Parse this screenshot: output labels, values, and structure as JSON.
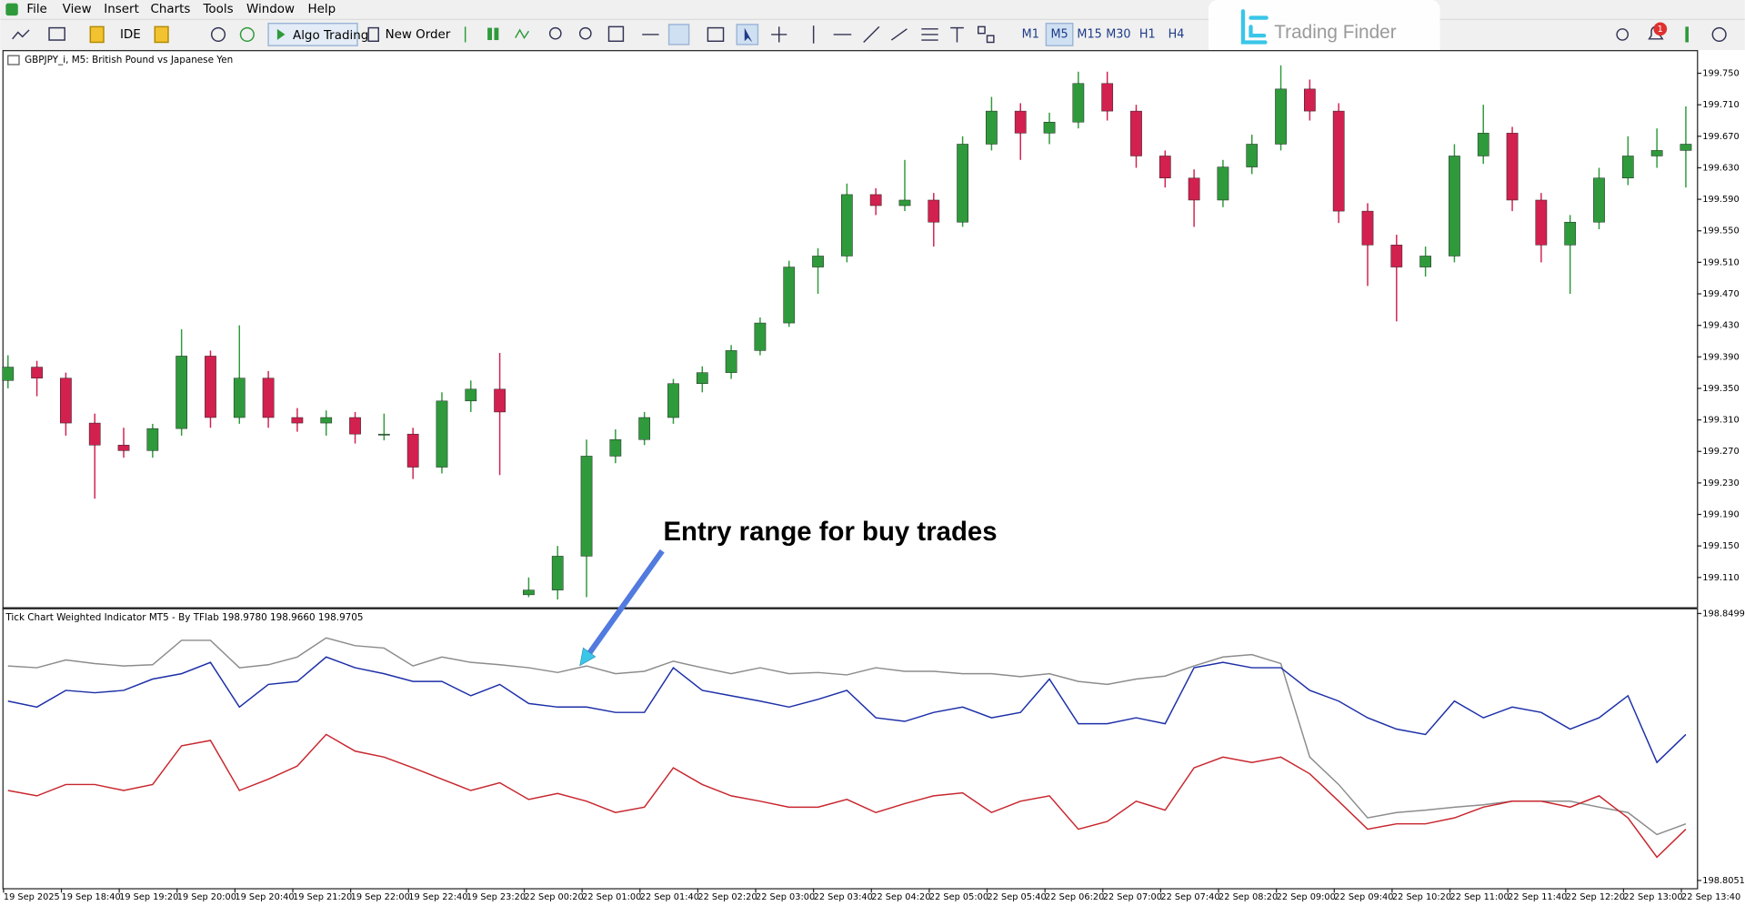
{
  "menu": [
    "File",
    "View",
    "Insert",
    "Charts",
    "Tools",
    "Window",
    "Help"
  ],
  "toolbar": {
    "ide": "IDE",
    "algo_trading": "Algo Trading",
    "new_order": "New Order",
    "timeframes": [
      "M1",
      "M5",
      "M15",
      "M30",
      "H1",
      "H4"
    ]
  },
  "brand": "Trading Finder",
  "notification_count": "1",
  "chart_data": [
    {
      "type": "candlestick",
      "title": "GBPJPY_i, M5:  British Pound vs Japanese Yen",
      "annotation": "Entry range for buy trades",
      "up_color": "#2f9a3c",
      "down_color": "#d2204f",
      "categories": [
        "19 Sep 2025",
        null,
        "19 Sep 18:40",
        null,
        "19 Sep 19:20",
        null,
        "19 Sep 20:00",
        null,
        "19 Sep 20:40",
        null,
        "19 Sep 21:20",
        null,
        "19 Sep 22:00",
        null,
        "19 Sep 22:40",
        null,
        "19 Sep 23:20",
        null,
        "22 Sep 00:20",
        null,
        "22 Sep 01:00",
        null,
        "22 Sep 01:40",
        null,
        "22 Sep 02:20",
        null,
        "22 Sep 03:00",
        null,
        "22 Sep 03:40",
        null,
        "22 Sep 04:20",
        null,
        "22 Sep 05:00",
        null,
        "22 Sep 05:40",
        null,
        "22 Sep 06:20",
        null,
        "22 Sep 07:00",
        null,
        "22 Sep 07:40",
        null,
        "22 Sep 08:20",
        null,
        "22 Sep 09:00",
        null,
        "22 Sep 09:40",
        null,
        "22 Sep 10:20",
        null,
        "22 Sep 11:00",
        null,
        "22 Sep 11:40",
        null,
        "22 Sep 12:20",
        null,
        "22 Sep 13:00",
        null,
        "22 Sep 13:40"
      ],
      "ohlc": [
        [
          199.36,
          199.392,
          199.35,
          199.377
        ],
        [
          199.377,
          199.385,
          199.34,
          199.363
        ],
        [
          199.363,
          199.37,
          199.29,
          199.306
        ],
        [
          199.306,
          199.318,
          199.21,
          199.278
        ],
        [
          199.278,
          199.3,
          199.262,
          199.271
        ],
        [
          199.271,
          199.305,
          199.262,
          199.299
        ],
        [
          199.299,
          199.425,
          199.29,
          199.391
        ],
        [
          199.391,
          199.398,
          199.3,
          199.313
        ],
        [
          199.313,
          199.43,
          199.305,
          199.363
        ],
        [
          199.363,
          199.372,
          199.3,
          199.313
        ],
        [
          199.313,
          199.325,
          199.295,
          199.306
        ],
        [
          199.306,
          199.322,
          199.29,
          199.313
        ],
        [
          199.313,
          199.32,
          199.28,
          199.292
        ],
        [
          199.292,
          199.318,
          199.284,
          199.292
        ],
        [
          199.292,
          199.3,
          199.235,
          199.25
        ],
        [
          199.25,
          199.345,
          199.242,
          199.334
        ],
        [
          199.334,
          199.36,
          199.32,
          199.349
        ],
        [
          199.349,
          199.395,
          199.24,
          199.32
        ],
        [
          199.088,
          199.11,
          199.085,
          199.094
        ],
        [
          199.094,
          199.15,
          199.082,
          199.137
        ],
        [
          199.137,
          199.285,
          199.085,
          199.264
        ],
        [
          199.264,
          199.298,
          199.255,
          199.285
        ],
        [
          199.285,
          199.32,
          199.278,
          199.313
        ],
        [
          199.313,
          199.362,
          199.305,
          199.356
        ],
        [
          199.356,
          199.378,
          199.345,
          199.37
        ],
        [
          199.37,
          199.405,
          199.362,
          199.398
        ],
        [
          199.398,
          199.44,
          199.392,
          199.433
        ],
        [
          199.433,
          199.512,
          199.428,
          199.504
        ],
        [
          199.504,
          199.528,
          199.47,
          199.518
        ],
        [
          199.518,
          199.61,
          199.51,
          199.596
        ],
        [
          199.596,
          199.604,
          199.57,
          199.582
        ],
        [
          199.582,
          199.64,
          199.575,
          199.589
        ],
        [
          199.589,
          199.598,
          199.53,
          199.561
        ],
        [
          199.561,
          199.67,
          199.555,
          199.66
        ],
        [
          199.66,
          199.72,
          199.652,
          199.702
        ],
        [
          199.702,
          199.712,
          199.64,
          199.674
        ],
        [
          199.674,
          199.7,
          199.66,
          199.688
        ],
        [
          199.688,
          199.752,
          199.68,
          199.737
        ],
        [
          199.737,
          199.752,
          199.69,
          199.702
        ],
        [
          199.702,
          199.71,
          199.63,
          199.645
        ],
        [
          199.645,
          199.652,
          199.605,
          199.617
        ],
        [
          199.617,
          199.628,
          199.555,
          199.589
        ],
        [
          199.589,
          199.64,
          199.58,
          199.631
        ],
        [
          199.631,
          199.672,
          199.622,
          199.66
        ],
        [
          199.66,
          199.76,
          199.652,
          199.73
        ],
        [
          199.73,
          199.742,
          199.69,
          199.702
        ],
        [
          199.702,
          199.712,
          199.56,
          199.575
        ],
        [
          199.575,
          199.585,
          199.48,
          199.532
        ],
        [
          199.532,
          199.545,
          199.435,
          199.504
        ],
        [
          199.504,
          199.53,
          199.492,
          199.518
        ],
        [
          199.518,
          199.66,
          199.51,
          199.645
        ],
        [
          199.645,
          199.71,
          199.635,
          199.674
        ],
        [
          199.674,
          199.682,
          199.575,
          199.589
        ],
        [
          199.589,
          199.598,
          199.51,
          199.532
        ],
        [
          199.532,
          199.57,
          199.47,
          199.561
        ],
        [
          199.561,
          199.63,
          199.552,
          199.617
        ],
        [
          199.617,
          199.67,
          199.608,
          199.645
        ],
        [
          199.645,
          199.68,
          199.63,
          199.652
        ],
        [
          199.652,
          199.708,
          199.605,
          199.66
        ]
      ],
      "ylim": [
        199.073,
        199.778
      ],
      "yticks": [
        {
          "value": 199.75,
          "label": "199.750"
        },
        {
          "value": 199.71,
          "label": "199.710"
        },
        {
          "value": 199.67,
          "label": "199.670"
        },
        {
          "value": 199.63,
          "label": "199.630"
        },
        {
          "value": 199.59,
          "label": "199.590"
        },
        {
          "value": 199.55,
          "label": "199.550"
        },
        {
          "value": 199.51,
          "label": "199.510"
        },
        {
          "value": 199.47,
          "label": "199.470"
        },
        {
          "value": 199.43,
          "label": "199.430"
        },
        {
          "value": 199.39,
          "label": "199.390"
        },
        {
          "value": 199.35,
          "label": "199.350"
        },
        {
          "value": 199.31,
          "label": "199.310"
        },
        {
          "value": 199.27,
          "label": "199.270"
        },
        {
          "value": 199.23,
          "label": "199.230"
        },
        {
          "value": 199.19,
          "label": "199.190"
        },
        {
          "value": 199.15,
          "label": "199.150"
        },
        {
          "value": 199.11,
          "label": "199.110"
        }
      ],
      "grid": false
    },
    {
      "type": "line",
      "title": "Tick Chart Weighted Indicator MT5 - By TFlab 198.9780 198.9660 198.9705",
      "series": [
        {
          "color": "#8c8c8c",
          "values": [
            198.8411,
            198.8408,
            198.8421,
            198.8415,
            198.8411,
            198.8413,
            198.8454,
            198.8454,
            198.8408,
            198.8413,
            198.8426,
            198.8458,
            198.8445,
            198.8441,
            198.8411,
            198.8426,
            198.8417,
            198.8413,
            198.8408,
            198.84,
            198.8411,
            198.8398,
            198.8402,
            198.8419,
            198.8408,
            198.8398,
            198.8408,
            198.8398,
            198.84,
            198.8396,
            198.8408,
            198.8402,
            198.8402,
            198.8398,
            198.8398,
            198.8393,
            198.8398,
            198.8385,
            198.838,
            198.8389,
            198.8394,
            198.8411,
            198.8426,
            198.843,
            198.8415,
            198.8258,
            198.8212,
            198.8156,
            198.8165,
            198.8169,
            198.8174,
            198.8178,
            198.8184,
            198.8184,
            198.8184,
            198.8174,
            198.8165,
            198.8128,
            198.8146
          ]
        },
        {
          "color": "#1c2fa8",
          "values": [
            198.8352,
            198.8342,
            198.837,
            198.8366,
            198.837,
            198.8389,
            198.8398,
            198.8417,
            198.8342,
            198.838,
            198.8385,
            198.8426,
            198.8408,
            198.8398,
            198.8385,
            198.8385,
            198.8361,
            198.838,
            198.8348,
            198.8342,
            198.8342,
            198.8333,
            198.8333,
            198.8408,
            198.837,
            198.8361,
            198.8352,
            198.8342,
            198.8355,
            198.837,
            198.8324,
            198.8318,
            198.8333,
            198.8342,
            198.8324,
            198.8333,
            198.8389,
            198.8314,
            198.8314,
            198.8324,
            198.8314,
            198.8408,
            198.8417,
            198.8408,
            198.8408,
            198.837,
            198.8352,
            198.8324,
            198.8305,
            198.8296,
            198.8352,
            198.8324,
            198.8342,
            198.8333,
            198.8305,
            198.8324,
            198.8361,
            198.8249,
            198.8296
          ]
        },
        {
          "color": "#c8262e",
          "values": [
            198.8202,
            198.8193,
            198.8212,
            198.8212,
            198.8202,
            198.8212,
            198.8277,
            198.8286,
            198.8202,
            198.8221,
            198.8243,
            198.8296,
            198.8268,
            198.8258,
            198.824,
            198.8221,
            198.8202,
            198.8215,
            198.8187,
            198.8197,
            198.8184,
            198.8165,
            198.8174,
            198.824,
            198.8212,
            198.8193,
            198.8184,
            198.8174,
            198.8174,
            198.8187,
            198.8165,
            198.818,
            198.8193,
            198.8198,
            198.8165,
            198.8184,
            198.8193,
            198.8137,
            198.815,
            198.8184,
            198.8169,
            198.824,
            198.8258,
            198.8249,
            198.8258,
            198.823,
            198.8184,
            198.8137,
            198.8146,
            198.8146,
            198.8156,
            198.8174,
            198.8184,
            198.8184,
            198.8174,
            198.8193,
            198.8156,
            198.809,
            198.8137
          ]
        }
      ],
      "ylim": [
        198.8038,
        198.8505
      ],
      "yticks": [
        198.8499,
        198.8051
      ],
      "grid": false
    }
  ]
}
